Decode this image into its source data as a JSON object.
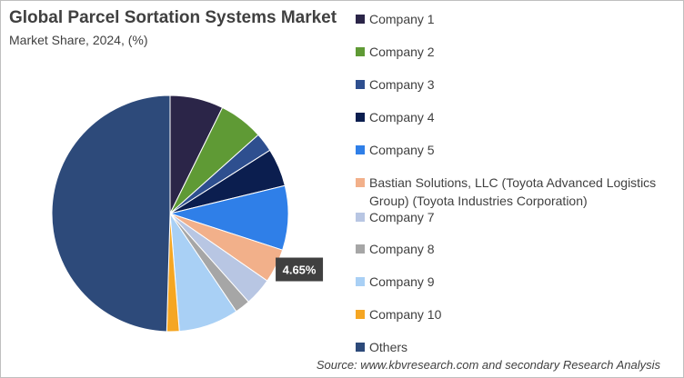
{
  "chart_data": {
    "type": "pie",
    "title": "Global Parcel Sortation Systems Market",
    "subtitle": "Market Share, 2024, (%)",
    "legend_position": "right",
    "slices": [
      {
        "label": "Company 1",
        "value": 7.3,
        "color": "#2b2548"
      },
      {
        "label": "Company 2",
        "value": 6.1,
        "color": "#5f9a35"
      },
      {
        "label": "Company 3",
        "value": 2.6,
        "color": "#2e4f8f"
      },
      {
        "label": "Company 4",
        "value": 5.2,
        "color": "#0b1e4f"
      },
      {
        "label": "Company 5",
        "value": 8.8,
        "color": "#2f7fe8"
      },
      {
        "label": "Bastian Solutions, LLC (Toyota Advanced Logistics Group) (Toyota Industries Corporation)",
        "value": 4.65,
        "color": "#f2b08a"
      },
      {
        "label": "Company 7",
        "value": 3.8,
        "color": "#b8c6e3"
      },
      {
        "label": "Company 8",
        "value": 2.1,
        "color": "#a6a6a6"
      },
      {
        "label": "Company 9",
        "value": 8.2,
        "color": "#a9d0f5"
      },
      {
        "label": "Company 10",
        "value": 1.7,
        "color": "#f5a623"
      },
      {
        "label": "Others",
        "value": 49.55,
        "color": "#2d4a7a"
      }
    ],
    "data_labels": [
      {
        "slice_index": 5,
        "text": "4.65%"
      }
    ]
  },
  "source": "Source: www.kbvresearch.com and secondary Research Analysis"
}
